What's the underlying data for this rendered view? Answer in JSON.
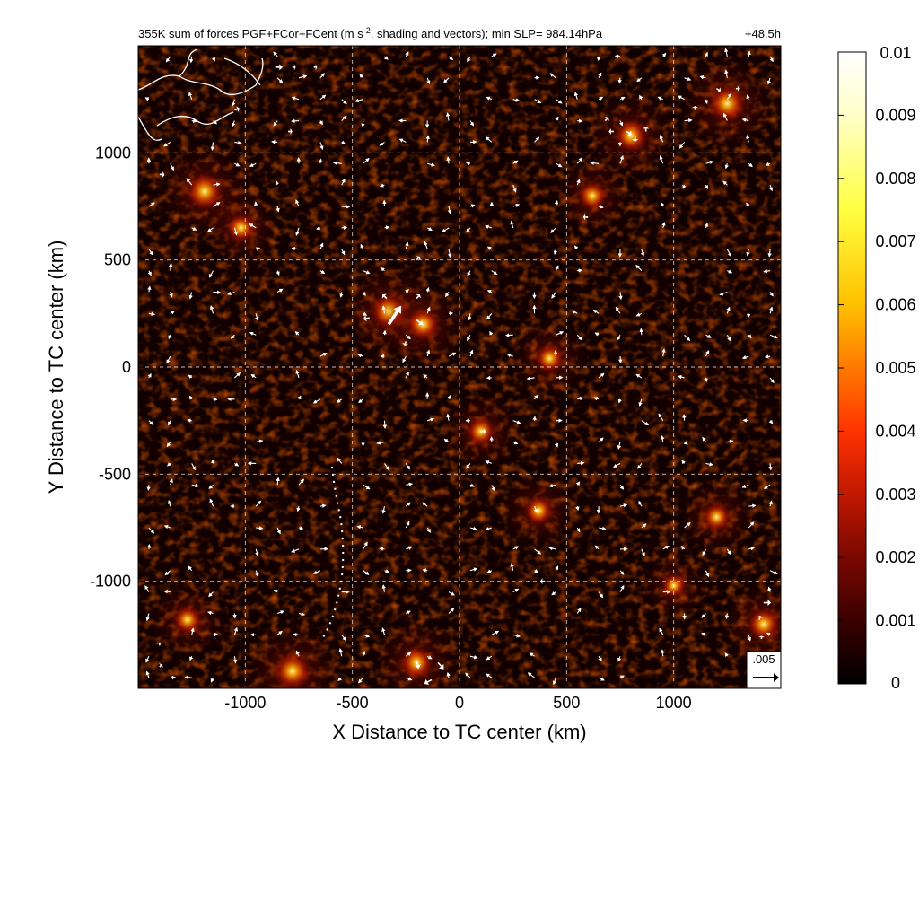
{
  "chart_data": {
    "type": "heatmap",
    "title": "355K sum of forces PGF+FCor+FCent (m s",
    "title_superscript": "-2",
    "title_rest": ", shading and vectors); min SLP= 984.14hPa",
    "time_label": "+48.5h",
    "xlabel": "X Distance to TC center (km)",
    "ylabel": "Y Distance to TC center (km)",
    "xlim": [
      -1500,
      1500
    ],
    "ylim": [
      -1500,
      1500
    ],
    "xticks": [
      -1000,
      -500,
      0,
      500,
      1000
    ],
    "yticks": [
      -1000,
      -500,
      0,
      500,
      1000
    ],
    "xtick_labels": [
      "-1000",
      "-500",
      "0",
      "500",
      "1000"
    ],
    "ytick_labels": [
      "-1000",
      "-500",
      "0",
      "500",
      "1000"
    ],
    "grid": true,
    "colorbar": {
      "min": 0,
      "max": 0.01,
      "ticks": [
        0,
        0.001,
        0.002,
        0.003,
        0.004,
        0.005,
        0.006,
        0.007,
        0.008,
        0.009,
        0.01
      ],
      "tick_labels": [
        "0",
        "0.001",
        "0.002",
        "0.003",
        "0.004",
        "0.005",
        "0.006",
        "0.007",
        "0.008",
        "0.009",
        "0.01"
      ],
      "colormap": [
        "#000000",
        "#3a0000",
        "#7a0800",
        "#c01800",
        "#ff3300",
        "#ff7a00",
        "#ffc000",
        "#ffff40",
        "#ffffc8",
        "#ffffff"
      ]
    },
    "reference_vector": {
      "value": 0.005,
      "label": ".005"
    },
    "hot_spots": [
      {
        "x": -330,
        "y": 260,
        "value": 0.006
      },
      {
        "x": -170,
        "y": 200,
        "value": 0.005
      },
      {
        "x": 800,
        "y": 1080,
        "value": 0.005
      },
      {
        "x": 1250,
        "y": 1230,
        "value": 0.006
      },
      {
        "x": -1190,
        "y": 820,
        "value": 0.006
      },
      {
        "x": 620,
        "y": 800,
        "value": 0.004
      },
      {
        "x": 100,
        "y": -300,
        "value": 0.004
      },
      {
        "x": 370,
        "y": -670,
        "value": 0.004
      },
      {
        "x": 1200,
        "y": -700,
        "value": 0.004
      },
      {
        "x": 1420,
        "y": -1200,
        "value": 0.005
      },
      {
        "x": -780,
        "y": -1420,
        "value": 0.006
      },
      {
        "x": -200,
        "y": -1380,
        "value": 0.005
      },
      {
        "x": 420,
        "y": 40,
        "value": 0.004
      },
      {
        "x": -1270,
        "y": -1180,
        "value": 0.004
      },
      {
        "x": -1020,
        "y": 650,
        "value": 0.004
      },
      {
        "x": 1000,
        "y": -1020,
        "value": 0.003
      }
    ],
    "vectors": [
      {
        "x": -330,
        "y": 200,
        "u": 0.003,
        "v": 0.0045
      },
      {
        "x": -200,
        "y": 220,
        "u": 0.0015,
        "v": -0.0012
      },
      {
        "x": -420,
        "y": 230,
        "u": -0.0015,
        "v": -0.0003
      },
      {
        "x": -340,
        "y": 320,
        "u": -0.001,
        "v": 0.001
      },
      {
        "x": -200,
        "y": 320,
        "u": 0.0008,
        "v": 0.001
      },
      {
        "x": -200,
        "y": 500,
        "u": 0.0008,
        "v": 0.0008
      },
      {
        "x": -250,
        "y": 120,
        "u": -0.0003,
        "v": -0.001
      },
      {
        "x": -860,
        "y": 1400,
        "u": 0.0018,
        "v": 0.0
      },
      {
        "x": -780,
        "y": 1400,
        "u": 0.0008,
        "v": 0.0
      },
      {
        "x": -680,
        "y": 1400,
        "u": 0.0008,
        "v": 0.0
      },
      {
        "x": -1050,
        "y": 1200,
        "u": 0.0012,
        "v": 0.0004
      },
      {
        "x": -800,
        "y": 1100,
        "u": 0.001,
        "v": 0.0
      },
      {
        "x": -1400,
        "y": 900,
        "u": 0.0012,
        "v": -0.0002
      },
      {
        "x": 780,
        "y": 1100,
        "u": 0.0012,
        "v": -0.0008
      },
      {
        "x": 720,
        "y": 1100,
        "u": -0.0012,
        "v": 0.0
      },
      {
        "x": 820,
        "y": 1080,
        "u": 0.0,
        "v": -0.0015
      },
      {
        "x": 680,
        "y": 1150,
        "u": 0.0008,
        "v": 0.0008
      },
      {
        "x": 870,
        "y": 1100,
        "u": 0.0,
        "v": 0.0012
      },
      {
        "x": 1200,
        "y": 1300,
        "u": 0.001,
        "v": -0.0006
      },
      {
        "x": 1290,
        "y": 1300,
        "u": 0.0008,
        "v": 0.0
      },
      {
        "x": 1100,
        "y": 1200,
        "u": 0.0,
        "v": 0.001
      },
      {
        "x": 600,
        "y": 700,
        "u": -0.0012,
        "v": 0.0
      },
      {
        "x": 100,
        "y": -300,
        "u": 0.0012,
        "v": 0.0
      },
      {
        "x": 400,
        "y": -1000,
        "u": -0.0012,
        "v": 0.0
      },
      {
        "x": 1420,
        "y": -1100,
        "u": 0.0018,
        "v": 0.0
      },
      {
        "x": 1400,
        "y": -1180,
        "u": 0.0002,
        "v": 0.001
      },
      {
        "x": 1410,
        "y": -1270,
        "u": 0.0,
        "v": 0.0008
      },
      {
        "x": -200,
        "y": -1370,
        "u": 0.0005,
        "v": -0.002
      },
      {
        "x": -100,
        "y": -1380,
        "u": 0.0014,
        "v": -0.0016
      },
      {
        "x": -130,
        "y": -1460,
        "u": -0.0018,
        "v": -0.001
      },
      {
        "x": -1400,
        "y": -1400,
        "u": 0.0006,
        "v": 0.0006
      },
      {
        "x": -1400,
        "y": -1300,
        "u": 0.0,
        "v": 0.0008
      }
    ]
  }
}
